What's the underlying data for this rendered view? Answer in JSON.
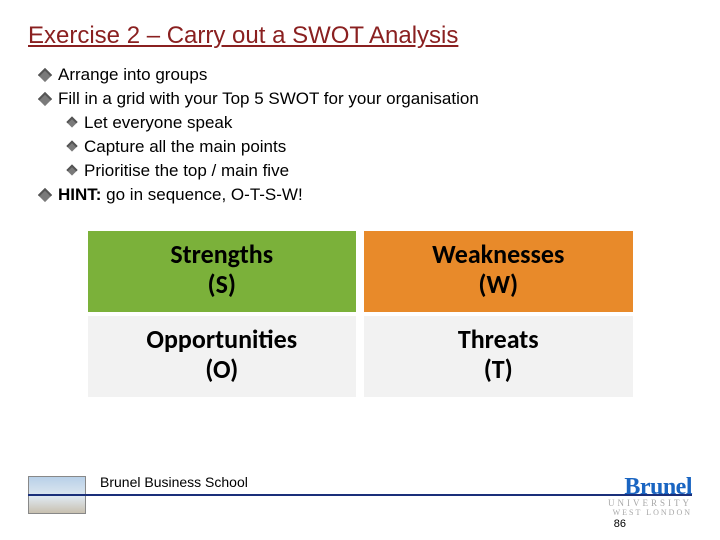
{
  "title": "Exercise 2 – Carry out a SWOT Analysis",
  "bullets": {
    "b1": "Arrange into groups",
    "b2": "Fill in a grid with your Top 5 SWOT for your organisation",
    "b2a": "Let everyone speak",
    "b2b": "Capture all the main points",
    "b2c": "Prioritise the top / main five",
    "b3_bold": "HINT:",
    "b3_rest": " go in sequence, O-T-S-W!"
  },
  "swot": {
    "strengths": {
      "label": "Strengths",
      "sub": "(S)",
      "bg": "#7bb13a"
    },
    "weaknesses": {
      "label": "Weaknesses",
      "sub": "(W)",
      "bg": "#e88a2a"
    },
    "opportunities": {
      "label": "Opportunities",
      "sub": "(O)",
      "bg": "#f2f2f2"
    },
    "threats": {
      "label": "Threats",
      "sub": "(T)",
      "bg": "#f2f2f2"
    }
  },
  "footer": {
    "school": "Brunel Business School",
    "logo_top": "Brunel",
    "logo_mid": "UNIVERSITY",
    "logo_bot": "WEST LONDON",
    "slide_number": "86",
    "line_color": "#1a2f7a"
  }
}
